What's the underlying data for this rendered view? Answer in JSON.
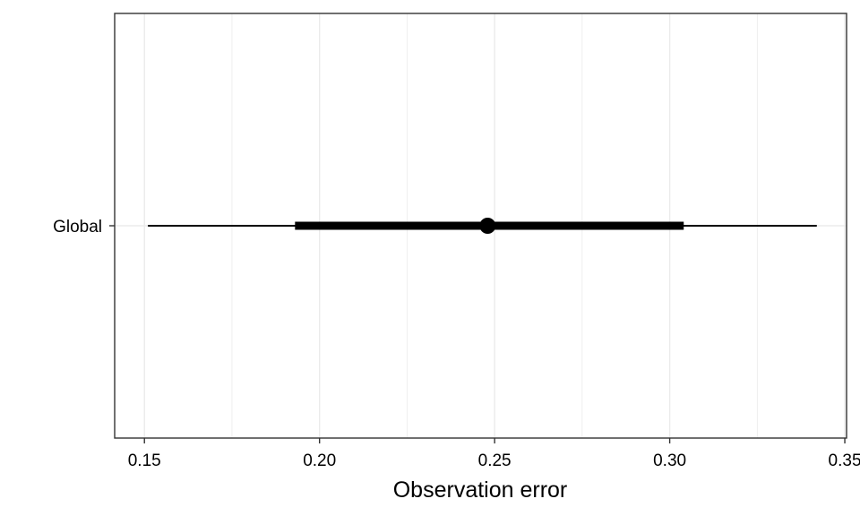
{
  "chart_data": {
    "type": "interval",
    "title": "",
    "xlabel": "Observation error",
    "ylabel": "",
    "xlim": [
      0.1415,
      0.3505
    ],
    "x_ticks": [
      0.15,
      0.2,
      0.25,
      0.3,
      0.35
    ],
    "x_tick_labels": [
      "0.15",
      "0.20",
      "0.25",
      "0.30",
      "0.35"
    ],
    "categories": [
      "Global"
    ],
    "series": [
      {
        "category": "Global",
        "point": 0.248,
        "inner_interval": [
          0.193,
          0.304
        ],
        "outer_interval": [
          0.151,
          0.342
        ]
      }
    ],
    "grid": true,
    "legend": "none",
    "colors": {
      "mark": "#000000",
      "grid": "#ebebeb",
      "panel_border": "#333333"
    }
  }
}
